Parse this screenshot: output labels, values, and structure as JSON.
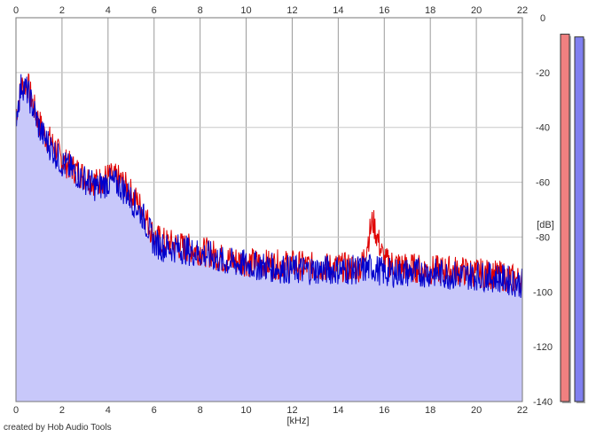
{
  "chart_data": {
    "type": "line",
    "xlabel": "[kHz]",
    "ylabel": "[dB]",
    "xlim": [
      0,
      22
    ],
    "ylim": [
      -140,
      0
    ],
    "x_ticks": [
      0,
      2,
      4,
      6,
      8,
      10,
      12,
      14,
      16,
      18,
      20,
      22
    ],
    "y_ticks": [
      0,
      -20,
      -40,
      -60,
      -80,
      -100,
      -120,
      -140
    ],
    "y_tick_labels": [
      "0",
      "-20",
      "-40",
      "-60",
      "-80",
      "-100",
      "-120",
      "-140"
    ],
    "grid": true,
    "credit": "created by Hob Audio Tools",
    "series": [
      {
        "color": "#e00000",
        "x": [
          0,
          0.25,
          0.5,
          0.75,
          1,
          1.25,
          1.5,
          1.75,
          2,
          2.5,
          3,
          3.5,
          4,
          4.5,
          5,
          5.5,
          6,
          6.5,
          7,
          7.5,
          8,
          8.5,
          9,
          10,
          11,
          12,
          13,
          14,
          15,
          15.5,
          16,
          17,
          18,
          19,
          20,
          21,
          22
        ],
        "values": [
          -35,
          -25,
          -24,
          -32,
          -38,
          -43,
          -45,
          -48,
          -52,
          -55,
          -58,
          -60,
          -58,
          -59,
          -64,
          -70,
          -80,
          -82,
          -83,
          -84,
          -85,
          -86,
          -88,
          -89,
          -90,
          -90,
          -91,
          -91,
          -91,
          -74,
          -89,
          -91,
          -92,
          -92,
          -93,
          -94,
          -96
        ]
      },
      {
        "color": "#0000cc",
        "x": [
          0,
          0.25,
          0.5,
          0.75,
          1,
          1.25,
          1.5,
          1.75,
          2,
          2.5,
          3,
          3.5,
          4,
          4.5,
          5,
          5.5,
          6,
          6.5,
          7,
          7.5,
          8,
          8.5,
          9,
          10,
          11,
          12,
          13,
          14,
          15,
          15.5,
          16,
          17,
          18,
          19,
          20,
          21,
          22
        ],
        "values": [
          -36,
          -24,
          -27,
          -33,
          -40,
          -44,
          -47,
          -50,
          -53,
          -56,
          -59,
          -62,
          -60,
          -61,
          -66,
          -72,
          -82,
          -84,
          -84,
          -85,
          -86,
          -87,
          -89,
          -90,
          -91,
          -92,
          -92,
          -92,
          -92,
          -91,
          -93,
          -93,
          -93,
          -94,
          -94,
          -95,
          -97
        ]
      }
    ],
    "fill_color": "#c8c8fa",
    "level_meters": [
      {
        "color": "#f08080",
        "level_db": -6
      },
      {
        "color": "#8080f0",
        "level_db": -7
      }
    ]
  }
}
